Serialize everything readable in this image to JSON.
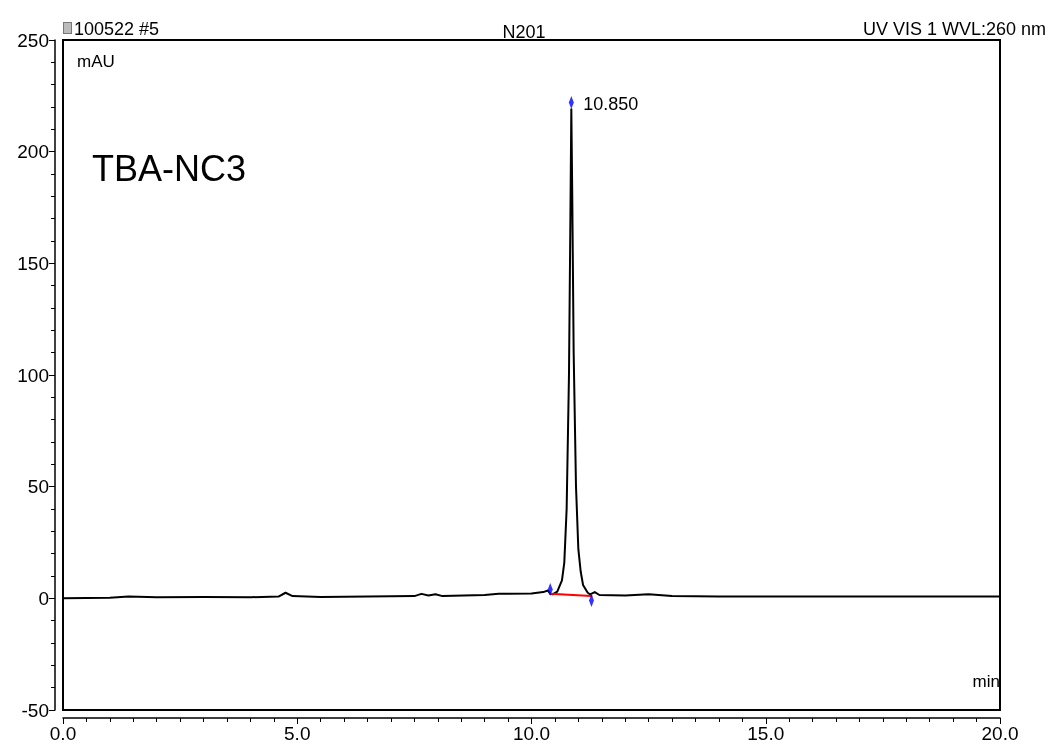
{
  "chart_data": {
    "type": "line",
    "title": "N201",
    "xlabel": "min",
    "ylabel": "mAU",
    "annotations": [
      "100522 #5",
      "UV VIS 1 WVL:260 nm",
      "TBA-NC3",
      {
        "text": "10.850",
        "x": 10.85,
        "y": 219
      }
    ],
    "series": [
      {
        "type": "line",
        "color": "#000000",
        "x": [
          0,
          1,
          1.4,
          2,
          3,
          4,
          4.6,
          4.75,
          4.9,
          5.5,
          6.5,
          7.5,
          7.65,
          7.8,
          7.95,
          8.1,
          9,
          9.3,
          9.5,
          10,
          10.25,
          10.35,
          10.4,
          10.45,
          10.55,
          10.65,
          10.7,
          10.75,
          10.8,
          10.83,
          10.85,
          10.87,
          10.9,
          10.95,
          11,
          11.05,
          11.1,
          11.2,
          11.25,
          11.35,
          11.45,
          12,
          12.5,
          13,
          14,
          16,
          18,
          20
        ],
        "values": [
          0,
          0.3,
          0.8,
          0.5,
          0.6,
          0.5,
          0.8,
          2.5,
          1,
          0.6,
          0.8,
          1,
          2,
          1.3,
          1.8,
          1,
          1.5,
          2,
          2,
          2.2,
          2.8,
          3.5,
          2,
          1.8,
          3,
          8,
          16,
          40,
          100,
          170,
          219,
          180,
          110,
          50,
          22,
          12,
          6,
          2.5,
          1.8,
          2.8,
          1.5,
          1.3,
          1.8,
          1,
          0.8,
          0.8,
          0.8,
          0.8
        ]
      },
      {
        "type": "line",
        "color": "#ff0000",
        "x": [
          10.4,
          11.28
        ],
        "values": [
          2,
          1
        ]
      },
      {
        "type": "scatter",
        "color": "#0000ff",
        "x": [
          10.4,
          10.85,
          11.28
        ],
        "values": [
          4,
          222,
          -1
        ]
      }
    ],
    "xlim": [
      0,
      20
    ],
    "xticks": [
      {
        "value": 0,
        "label": "0.0"
      },
      {
        "value": 5,
        "label": "5.0"
      },
      {
        "value": 10,
        "label": "10.0"
      },
      {
        "value": 15,
        "label": "15.0"
      },
      {
        "value": 20,
        "label": "20.0"
      }
    ],
    "ylim": [
      -50,
      250
    ],
    "yticks": [
      -50,
      0,
      50,
      100,
      150,
      200,
      250
    ],
    "grid": false,
    "line_style": "solid"
  }
}
